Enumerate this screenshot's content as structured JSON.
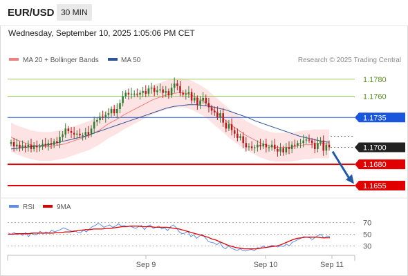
{
  "header": {
    "symbol": "EUR/USD",
    "timeframe": "30 MIN"
  },
  "datetime": "Wednesday, September 10, 2025 1:05:06 PM CET",
  "legend": {
    "ma20_label": "MA 20 + Bollinger Bands",
    "ma50_label": "MA 50",
    "credit": "Research © 2025 Trading Central"
  },
  "rsi_legend": {
    "rsi_label": "RSI",
    "ma_label": "9MA"
  },
  "colors": {
    "ma20": "#f08080",
    "bollinger_fill": "#fde3e3",
    "ma50": "#2f5597",
    "candle_up": "#2e7d32",
    "candle_down": "#b71c1c",
    "green_level": "#9ccc65",
    "blue_level": "#1a56db",
    "red_level": "#e00000",
    "rsi": "#5b8def",
    "rsi_ma": "#e00000",
    "arrow": "#2159a5"
  },
  "chart_data": {
    "type": "candlestick",
    "x_labels": [
      "Sep 9",
      "Sep 10",
      "Sep 11"
    ],
    "ylim": [
      1.1642,
      1.1792
    ],
    "current_price": "1.1700",
    "levels": [
      {
        "label": "1.1780",
        "value": 1.178,
        "kind": "resistance"
      },
      {
        "label": "1.1760",
        "value": 1.176,
        "kind": "resistance"
      },
      {
        "label": "1.1735",
        "value": 1.1735,
        "kind": "pivot"
      },
      {
        "label": "1.1680",
        "value": 1.168,
        "kind": "support"
      },
      {
        "label": "1.1655",
        "value": 1.1655,
        "kind": "support"
      }
    ],
    "close_series": [
      1.1706,
      1.1701,
      1.1703,
      1.1699,
      1.1702,
      1.17,
      1.1703,
      1.1698,
      1.1702,
      1.17,
      1.1701,
      1.1704,
      1.1702,
      1.1705,
      1.1703,
      1.1707,
      1.1705,
      1.1712,
      1.1715,
      1.1722,
      1.1719,
      1.1717,
      1.1715,
      1.1716,
      1.1714,
      1.1714,
      1.1718,
      1.1715,
      1.1722,
      1.173,
      1.1732,
      1.1736,
      1.1735,
      1.1738,
      1.174,
      1.1745,
      1.174,
      1.1745,
      1.1752,
      1.176,
      1.1764,
      1.1762,
      1.1763,
      1.1763,
      1.1762,
      1.1764,
      1.1766,
      1.1763,
      1.1769,
      1.177,
      1.1765,
      1.1767,
      1.1768,
      1.1764,
      1.1766,
      1.1761,
      1.177,
      1.1775,
      1.1772,
      1.1764,
      1.1762,
      1.1763,
      1.1765,
      1.1755,
      1.1758,
      1.175,
      1.1755,
      1.1758,
      1.1752,
      1.1747,
      1.1743,
      1.1741,
      1.1735,
      1.174,
      1.1729,
      1.1722,
      1.1727,
      1.172,
      1.1716,
      1.1711,
      1.1713,
      1.1705,
      1.17,
      1.1701,
      1.1699,
      1.17,
      1.1703,
      1.1701,
      1.1704,
      1.17,
      1.17,
      1.1703,
      1.1698,
      1.1695,
      1.1699,
      1.1694,
      1.17,
      1.1698,
      1.1703,
      1.1702,
      1.1705,
      1.1705,
      1.1708,
      1.1709,
      1.1708,
      1.1705,
      1.1698,
      1.1705,
      1.1708,
      1.1696,
      1.1703,
      1.17
    ],
    "ma20": [
      1.1712,
      1.1709,
      1.1707,
      1.1705,
      1.1703,
      1.1702,
      1.1701,
      1.1701,
      1.1701,
      1.1702,
      1.1703,
      1.1704,
      1.1706,
      1.1708,
      1.171,
      1.1712,
      1.1714,
      1.1717,
      1.172,
      1.1724,
      1.1728,
      1.1731,
      1.1734,
      1.1738,
      1.1741,
      1.1744,
      1.1747,
      1.175,
      1.1753,
      1.1756,
      1.1758,
      1.176,
      1.1762,
      1.1763,
      1.1764,
      1.1764,
      1.1763,
      1.1761,
      1.1758,
      1.1755,
      1.1751,
      1.1746,
      1.1741,
      1.1736,
      1.1731,
      1.1726,
      1.1722,
      1.1718,
      1.1714,
      1.1711,
      1.1708,
      1.1705,
      1.1703,
      1.1701,
      1.17,
      1.17,
      1.17,
      1.17,
      1.1701,
      1.1702,
      1.1703,
      1.1703,
      1.1704,
      1.1704,
      1.1704,
      1.1704
    ],
    "ma50": [
      1.1698,
      1.1699,
      1.17,
      1.1701,
      1.1702,
      1.1703,
      1.1705,
      1.1707,
      1.1709,
      1.1711,
      1.1713,
      1.1716,
      1.1719,
      1.1722,
      1.1725,
      1.1728,
      1.1731,
      1.1734,
      1.1737,
      1.174,
      1.1743,
      1.1746,
      1.1748,
      1.1749,
      1.175,
      1.175,
      1.1749,
      1.1748,
      1.1746,
      1.1744,
      1.1741,
      1.1738,
      1.1735,
      1.1731,
      1.1728,
      1.1725,
      1.1722,
      1.1719,
      1.1716,
      1.1713,
      1.1711,
      1.1709,
      1.1707,
      1.1706
    ],
    "rsi": {
      "ylim": [
        15,
        85
      ],
      "ticks": [
        "70",
        "50",
        "30"
      ],
      "values": [
        52,
        50,
        53,
        49,
        51,
        48,
        53,
        46,
        52,
        49,
        50,
        55,
        51,
        54,
        52,
        57,
        54,
        56,
        58,
        61,
        59,
        57,
        55,
        56,
        53,
        53,
        57,
        54,
        59,
        63,
        65,
        69,
        66,
        62,
        64,
        66,
        62,
        64,
        68,
        64,
        65,
        63,
        64,
        62,
        60,
        63,
        65,
        58,
        64,
        66,
        60,
        62,
        64,
        59,
        61,
        56,
        63,
        66,
        61,
        54,
        51,
        52,
        55,
        46,
        49,
        43,
        47,
        50,
        44,
        38,
        36,
        35,
        32,
        36,
        28,
        25,
        30,
        26,
        24,
        22,
        25,
        22,
        21,
        23,
        24,
        22,
        27,
        26,
        30,
        27,
        29,
        31,
        30,
        28,
        30,
        29,
        33,
        30,
        36,
        38,
        41,
        43,
        46,
        45,
        44,
        41,
        45,
        48,
        50,
        43,
        47,
        46
      ],
      "ma": [
        50,
        50,
        51,
        51,
        51,
        51,
        52,
        52,
        52,
        52,
        52,
        52,
        53,
        53,
        54,
        54,
        55,
        56,
        57,
        58,
        58,
        59,
        59,
        59,
        60,
        60,
        61,
        62,
        63,
        63,
        64,
        64,
        64,
        63,
        63,
        63,
        62,
        62,
        62,
        62,
        61,
        60,
        59,
        57,
        55,
        53,
        51,
        49,
        47,
        45,
        42,
        40,
        37,
        34,
        31,
        29,
        27,
        26,
        25,
        25,
        25,
        25,
        26,
        27,
        28,
        29,
        30,
        32,
        35,
        38,
        41,
        43,
        44,
        45,
        45,
        45,
        45,
        44,
        44,
        44
      ]
    },
    "forecast_arrow": {
      "from": 1.1695,
      "to": 1.1657
    }
  }
}
